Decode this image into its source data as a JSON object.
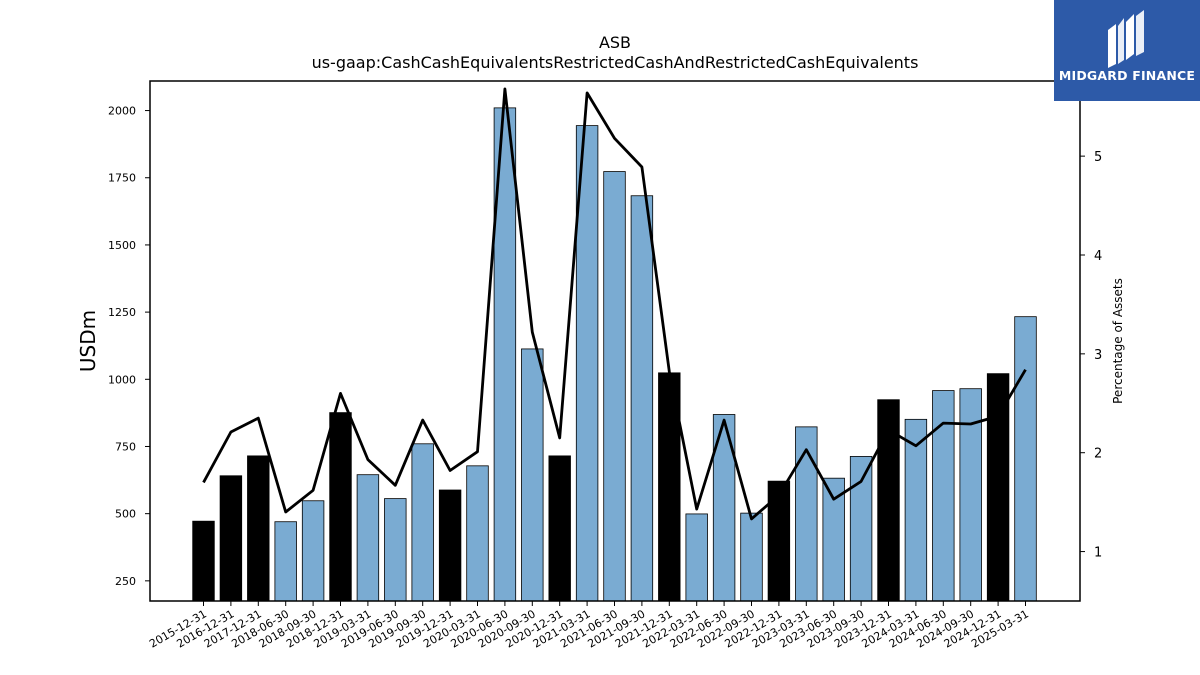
{
  "chart_data": {
    "type": "bar",
    "title": "ASB",
    "subtitle": "us-gaap:CashCashEquivalentsRestrictedCashAndRestrictedCashEquivalents",
    "ylabel": "USDm",
    "y2label": "Percentage of Assets",
    "ylim": [
      175,
      2110
    ],
    "y2lim": [
      0.5,
      5.76
    ],
    "yticks": [
      250,
      500,
      750,
      1000,
      1250,
      1500,
      1750,
      2000
    ],
    "y2ticks": [
      1,
      2,
      3,
      4,
      5
    ],
    "grid": false,
    "categories": [
      "2015-12-31",
      "2016-12-31",
      "2017-12-31",
      "2018-06-30",
      "2018-09-30",
      "2018-12-31",
      "2019-03-31",
      "2019-06-30",
      "2019-09-30",
      "2019-12-31",
      "2020-03-31",
      "2020-06-30",
      "2020-09-30",
      "2020-12-31",
      "2021-03-31",
      "2021-06-30",
      "2021-09-30",
      "2021-12-31",
      "2022-03-31",
      "2022-06-30",
      "2022-09-30",
      "2022-12-31",
      "2023-03-31",
      "2023-06-30",
      "2023-09-30",
      "2023-12-31",
      "2024-03-31",
      "2024-06-30",
      "2024-09-30",
      "2024-12-31",
      "2025-03-31"
    ],
    "series": [
      {
        "type": "bar",
        "values": [
          472,
          641,
          715,
          470,
          548,
          876,
          645,
          556,
          760,
          588,
          678,
          2010,
          1113,
          715,
          1944,
          1773,
          1683,
          1024,
          499,
          869,
          502,
          621,
          823,
          632,
          713,
          924,
          851,
          958,
          965,
          1021,
          1233
        ],
        "highlight": [
          true,
          true,
          true,
          false,
          false,
          true,
          false,
          false,
          false,
          true,
          false,
          false,
          false,
          true,
          false,
          false,
          false,
          true,
          false,
          false,
          false,
          true,
          false,
          false,
          false,
          true,
          false,
          false,
          false,
          true,
          false
        ]
      },
      {
        "type": "line",
        "axis": "right",
        "values": [
          1.7,
          2.21,
          2.35,
          1.4,
          1.62,
          2.6,
          1.93,
          1.67,
          2.33,
          1.82,
          2.01,
          5.68,
          3.22,
          2.15,
          5.64,
          5.18,
          4.89,
          2.82,
          1.43,
          2.33,
          1.33,
          1.57,
          2.03,
          1.53,
          1.71,
          2.23,
          2.07,
          2.3,
          2.29,
          2.37,
          2.84
        ]
      }
    ],
    "colors": {
      "bar": "#7aabd2",
      "bar_highlight": "#000000",
      "line": "#000000",
      "bar_edge": "#000000"
    }
  },
  "logo": {
    "text": "MIDGARD FINANCE",
    "background": "#2d5aa8"
  }
}
